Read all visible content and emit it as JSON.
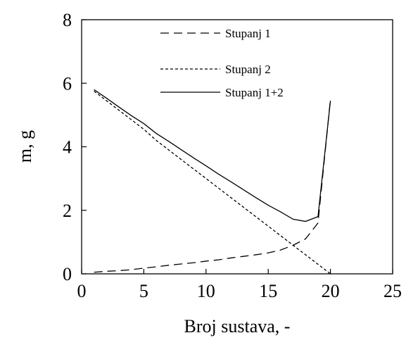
{
  "chart_data": {
    "type": "line",
    "xlabel": "Broj sustava,  -",
    "ylabel": "m, g",
    "xlim": [
      0,
      25
    ],
    "ylim": [
      0,
      8
    ],
    "xticks": [
      0,
      5,
      10,
      15,
      20,
      25
    ],
    "yticks": [
      0,
      2,
      4,
      6,
      8
    ],
    "grid": false,
    "legend_position": "top-right",
    "series": [
      {
        "name": "Stupanj 1",
        "dash": "long-dash",
        "color": "#000000",
        "x": [
          1,
          2,
          3,
          4,
          5,
          6,
          7,
          8,
          9,
          10,
          11,
          12,
          13,
          14,
          15,
          16,
          17,
          18,
          19,
          20
        ],
        "y": [
          0.05,
          0.08,
          0.1,
          0.13,
          0.18,
          0.22,
          0.27,
          0.31,
          0.35,
          0.4,
          0.44,
          0.5,
          0.55,
          0.6,
          0.66,
          0.75,
          0.9,
          1.1,
          1.6,
          5.5
        ]
      },
      {
        "name": "Stupanj 2",
        "dash": "short-dash",
        "color": "#000000",
        "x": [
          1,
          2,
          3,
          4,
          5,
          6,
          7,
          8,
          9,
          10,
          11,
          12,
          13,
          14,
          15,
          16,
          17,
          18,
          19,
          20
        ],
        "y": [
          5.75,
          5.45,
          5.15,
          4.85,
          4.55,
          4.2,
          3.9,
          3.6,
          3.3,
          3.0,
          2.7,
          2.4,
          2.1,
          1.8,
          1.5,
          1.2,
          0.9,
          0.6,
          0.3,
          0.0
        ]
      },
      {
        "name": "Stupanj 1+2",
        "dash": "solid",
        "color": "#000000",
        "x": [
          1,
          2,
          3,
          4,
          5,
          6,
          7,
          8,
          9,
          10,
          11,
          12,
          13,
          14,
          15,
          16,
          17,
          18,
          19,
          20
        ],
        "y": [
          5.8,
          5.53,
          5.25,
          4.98,
          4.73,
          4.42,
          4.17,
          3.91,
          3.65,
          3.4,
          3.14,
          2.9,
          2.65,
          2.4,
          2.16,
          1.95,
          1.72,
          1.65,
          1.8,
          5.45
        ]
      }
    ]
  }
}
